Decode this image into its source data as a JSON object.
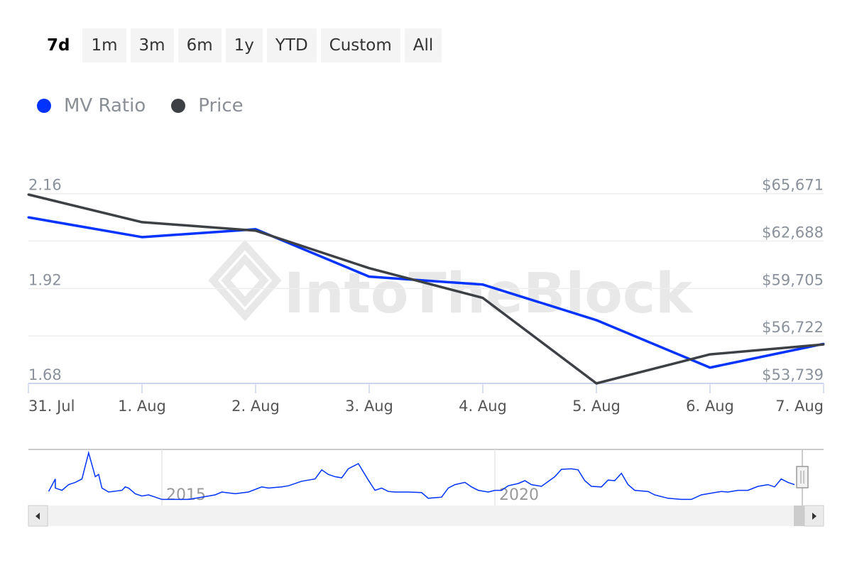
{
  "range_buttons": [
    {
      "label": "7d",
      "selected": true
    },
    {
      "label": "1m"
    },
    {
      "label": "3m"
    },
    {
      "label": "6m"
    },
    {
      "label": "1y"
    },
    {
      "label": "YTD"
    },
    {
      "label": "Custom"
    },
    {
      "label": "All"
    }
  ],
  "watermark": "IntoTheBlock",
  "colors": {
    "mv_ratio": "#0033ff",
    "price": "#3d4045",
    "grid": "#eeeeee",
    "navigator": "#0033ff"
  },
  "chart_data": {
    "type": "line",
    "categories": [
      "31. Jul",
      "1. Aug",
      "2. Aug",
      "3. Aug",
      "4. Aug",
      "5. Aug",
      "6. Aug",
      "7. Aug"
    ],
    "legend_placement": "top-left",
    "grid": true,
    "y_left": {
      "ticks": [
        "2.16",
        "1.92",
        "1.68"
      ],
      "range": [
        1.68,
        2.16
      ]
    },
    "y_right": {
      "ticks": [
        "$65,671",
        "$62,688",
        "$59,705",
        "$56,722",
        "$53,739"
      ],
      "range": [
        53739,
        65671
      ]
    },
    "series": [
      {
        "name": "MV Ratio",
        "axis": "left",
        "values": [
          2.1,
          2.05,
          2.07,
          1.95,
          1.93,
          1.84,
          1.72,
          1.78
        ]
      },
      {
        "name": "Price",
        "axis": "right",
        "values": [
          65613,
          63877,
          63343,
          60983,
          59113,
          53739,
          55565,
          56188
        ]
      }
    ],
    "navigator": {
      "tick_labels": [
        "2015",
        "2020"
      ],
      "series": [
        [
          2013.3,
          0.8
        ],
        [
          2013.4,
          1.9
        ],
        [
          2013.4,
          1.1
        ],
        [
          2013.5,
          0.9
        ],
        [
          2013.6,
          1.4
        ],
        [
          2013.7,
          1.6
        ],
        [
          2013.8,
          1.9
        ],
        [
          2013.9,
          4.2
        ],
        [
          2014.0,
          2.1
        ],
        [
          2014.05,
          2.3
        ],
        [
          2014.1,
          1.1
        ],
        [
          2014.2,
          0.75
        ],
        [
          2014.4,
          0.9
        ],
        [
          2014.45,
          1.2
        ],
        [
          2014.5,
          1.1
        ],
        [
          2014.6,
          0.6
        ],
        [
          2014.7,
          0.4
        ],
        [
          2014.8,
          0.5
        ],
        [
          2014.9,
          0.3
        ],
        [
          2015.0,
          0.1
        ],
        [
          2015.2,
          0.1
        ],
        [
          2015.4,
          0.1
        ],
        [
          2015.6,
          0.3
        ],
        [
          2015.8,
          0.5
        ],
        [
          2015.9,
          0.75
        ],
        [
          2016.1,
          0.6
        ],
        [
          2016.3,
          0.75
        ],
        [
          2016.5,
          1.2
        ],
        [
          2016.6,
          1.1
        ],
        [
          2016.8,
          1.2
        ],
        [
          2016.9,
          1.3
        ],
        [
          2017.1,
          1.7
        ],
        [
          2017.3,
          1.9
        ],
        [
          2017.4,
          2.7
        ],
        [
          2017.5,
          2.3
        ],
        [
          2017.6,
          2.1
        ],
        [
          2017.7,
          2.0
        ],
        [
          2017.8,
          2.8
        ],
        [
          2017.95,
          3.25
        ],
        [
          2018.1,
          1.8
        ],
        [
          2018.2,
          0.9
        ],
        [
          2018.3,
          1.1
        ],
        [
          2018.4,
          0.8
        ],
        [
          2018.5,
          0.75
        ],
        [
          2018.7,
          0.75
        ],
        [
          2018.9,
          0.7
        ],
        [
          2019.0,
          0.2
        ],
        [
          2019.2,
          0.3
        ],
        [
          2019.3,
          1.1
        ],
        [
          2019.4,
          1.4
        ],
        [
          2019.55,
          1.6
        ],
        [
          2019.65,
          1.2
        ],
        [
          2019.75,
          0.9
        ],
        [
          2019.9,
          0.75
        ],
        [
          2020.0,
          0.9
        ],
        [
          2020.1,
          0.9
        ],
        [
          2020.2,
          1.3
        ],
        [
          2020.35,
          1.5
        ],
        [
          2020.45,
          1.75
        ],
        [
          2020.55,
          1.4
        ],
        [
          2020.7,
          1.25
        ],
        [
          2020.9,
          2.1
        ],
        [
          2021.0,
          2.75
        ],
        [
          2021.15,
          2.8
        ],
        [
          2021.25,
          2.7
        ],
        [
          2021.35,
          1.75
        ],
        [
          2021.45,
          1.25
        ],
        [
          2021.6,
          1.2
        ],
        [
          2021.7,
          1.8
        ],
        [
          2021.8,
          1.75
        ],
        [
          2021.9,
          2.4
        ],
        [
          2022.0,
          1.4
        ],
        [
          2022.1,
          0.9
        ],
        [
          2022.3,
          0.8
        ],
        [
          2022.4,
          0.5
        ],
        [
          2022.6,
          0.2
        ],
        [
          2022.8,
          0.1
        ],
        [
          2022.95,
          0.1
        ],
        [
          2023.1,
          0.5
        ],
        [
          2023.3,
          0.7
        ],
        [
          2023.4,
          0.8
        ],
        [
          2023.5,
          0.75
        ],
        [
          2023.65,
          0.9
        ],
        [
          2023.8,
          0.9
        ],
        [
          2023.95,
          1.25
        ],
        [
          2024.1,
          1.4
        ],
        [
          2024.2,
          1.2
        ],
        [
          2024.3,
          1.9
        ],
        [
          2024.4,
          1.6
        ],
        [
          2024.5,
          1.4
        ]
      ]
    }
  }
}
